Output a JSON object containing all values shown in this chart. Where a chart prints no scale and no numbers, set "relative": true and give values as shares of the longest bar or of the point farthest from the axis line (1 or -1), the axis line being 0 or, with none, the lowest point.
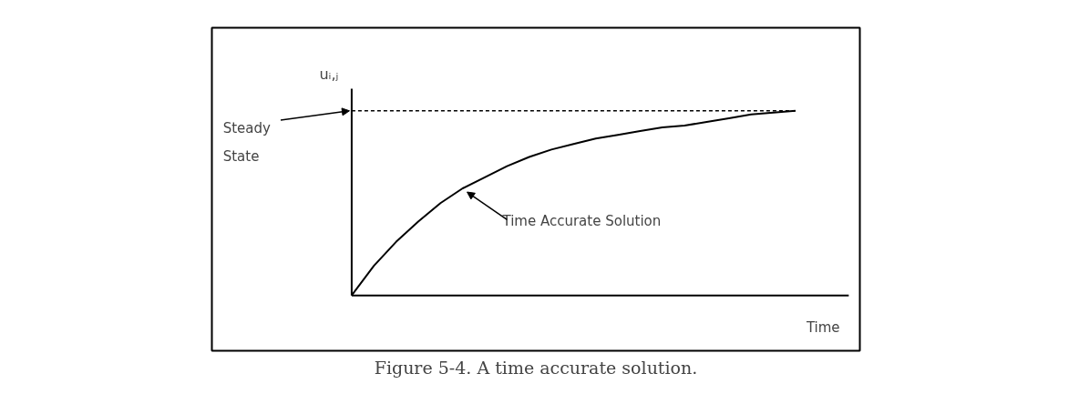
{
  "chart_data": {
    "type": "line",
    "relative": true,
    "title": "Figure 5-4. A time accurate solution.",
    "xlabel": "Time",
    "ylabel": "uᵢ,ⱼ",
    "color": "#000000",
    "categories": [
      null,
      null,
      null,
      null,
      null,
      null,
      null,
      null,
      null,
      null,
      null,
      null,
      null,
      null,
      null,
      null,
      null,
      null,
      null,
      null,
      null
    ],
    "values": [
      0,
      0.16,
      0.29,
      0.4,
      0.5,
      0.58,
      0.64,
      0.7,
      0.75,
      0.79,
      0.82,
      0.85,
      0.87,
      0.89,
      0.91,
      0.92,
      0.94,
      0.96,
      0.98,
      0.99,
      1.0
    ],
    "ref_lines": [
      {
        "axis": "y",
        "value": 1,
        "label": "Steady State",
        "line_style": "dashed",
        "color": "#000000"
      }
    ],
    "annotations": [
      "Time Accurate Solution"
    ]
  }
}
